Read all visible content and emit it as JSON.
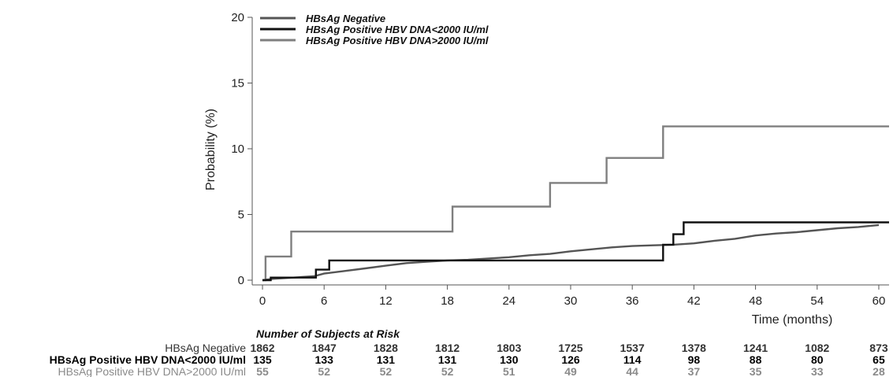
{
  "chart_data": {
    "type": "line",
    "step": true,
    "xlabel": "Time (months)",
    "ylabel": "Probability (%)",
    "xlim": [
      -1,
      61
    ],
    "ylim": [
      0,
      20
    ],
    "xticks": [
      0,
      6,
      12,
      18,
      24,
      30,
      36,
      42,
      48,
      54,
      60
    ],
    "yticks": [
      0,
      5,
      10,
      15,
      20
    ],
    "legend_position": "top-left",
    "series": [
      {
        "name": "HBsAg Negative",
        "color": "#555555",
        "points": [
          [
            0,
            0
          ],
          [
            1,
            0.1
          ],
          [
            3,
            0.2
          ],
          [
            5,
            0.3
          ],
          [
            6,
            0.5
          ],
          [
            8,
            0.7
          ],
          [
            10,
            0.9
          ],
          [
            12,
            1.1
          ],
          [
            14,
            1.3
          ],
          [
            16,
            1.4
          ],
          [
            18,
            1.5
          ],
          [
            20,
            1.55
          ],
          [
            22,
            1.65
          ],
          [
            24,
            1.75
          ],
          [
            26,
            1.9
          ],
          [
            28,
            2.0
          ],
          [
            30,
            2.2
          ],
          [
            32,
            2.35
          ],
          [
            34,
            2.5
          ],
          [
            36,
            2.6
          ],
          [
            38,
            2.65
          ],
          [
            40,
            2.7
          ],
          [
            42,
            2.8
          ],
          [
            44,
            3.0
          ],
          [
            46,
            3.15
          ],
          [
            48,
            3.4
          ],
          [
            50,
            3.55
          ],
          [
            52,
            3.65
          ],
          [
            54,
            3.8
          ],
          [
            56,
            3.95
          ],
          [
            58,
            4.05
          ],
          [
            60,
            4.2
          ]
        ]
      },
      {
        "name": "HBsAg Positive HBV DNA<2000 IU/ml",
        "color": "#111111",
        "points": [
          [
            0,
            0
          ],
          [
            0.8,
            0
          ],
          [
            0.8,
            0.2
          ],
          [
            5.2,
            0.2
          ],
          [
            5.2,
            0.8
          ],
          [
            6.5,
            0.8
          ],
          [
            6.5,
            1.5
          ],
          [
            39,
            1.5
          ],
          [
            39,
            2.7
          ],
          [
            40,
            2.7
          ],
          [
            40,
            3.5
          ],
          [
            41,
            3.5
          ],
          [
            41,
            4.4
          ],
          [
            61,
            4.4
          ]
        ]
      },
      {
        "name": "HBsAg Positive HBV DNA>2000 IU/ml",
        "color": "#7f7f7f",
        "points": [
          [
            0,
            0
          ],
          [
            0.3,
            0
          ],
          [
            0.3,
            1.8
          ],
          [
            2.8,
            1.8
          ],
          [
            2.8,
            3.7
          ],
          [
            18.5,
            3.7
          ],
          [
            18.5,
            5.6
          ],
          [
            28,
            5.6
          ],
          [
            28,
            7.4
          ],
          [
            33.5,
            7.4
          ],
          [
            33.5,
            9.3
          ],
          [
            39,
            9.3
          ],
          [
            39,
            11.7
          ],
          [
            61,
            11.7
          ]
        ]
      }
    ],
    "risk_table": {
      "title": "Number of Subjects at Risk",
      "rows": [
        {
          "label": "HBsAg Negative",
          "values": [
            1862,
            1847,
            1828,
            1812,
            1803,
            1725,
            1537,
            1378,
            1241,
            1082,
            873
          ]
        },
        {
          "label": "HBsAg Positive HBV DNA<2000 IU/ml",
          "values": [
            135,
            133,
            131,
            131,
            130,
            126,
            114,
            98,
            88,
            80,
            65
          ]
        },
        {
          "label": "HBsAg Positive HBV DNA>2000 IU/ml",
          "values": [
            55,
            52,
            52,
            52,
            51,
            49,
            44,
            37,
            35,
            33,
            28
          ]
        }
      ]
    }
  }
}
